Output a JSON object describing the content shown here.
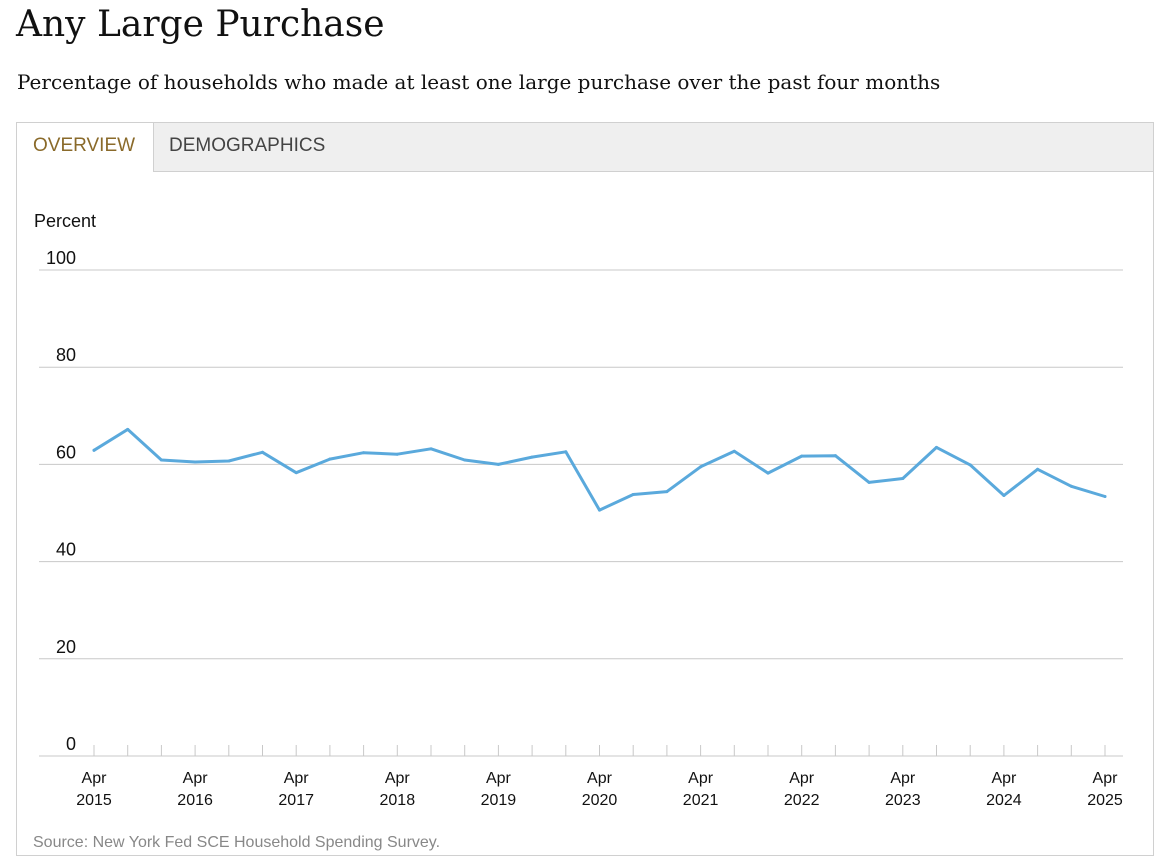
{
  "header": {
    "title": "Any Large Purchase",
    "subtitle": "Percentage of households who made at least one large purchase over the past four months"
  },
  "tabs": [
    {
      "label": "OVERVIEW",
      "active": true
    },
    {
      "label": "DEMOGRAPHICS",
      "active": false
    }
  ],
  "colors": {
    "line": "#5aa9dc",
    "active_tab_text": "#8a6a2a",
    "gridline": "#c8c8c8"
  },
  "chart_data": {
    "type": "line",
    "ylabel": "Percent",
    "ylim": [
      0,
      100
    ],
    "yticks": [
      0,
      20,
      40,
      60,
      80,
      100
    ],
    "x_tick_labels": [
      [
        "Apr",
        "2015"
      ],
      [
        "Apr",
        "2016"
      ],
      [
        "Apr",
        "2017"
      ],
      [
        "Apr",
        "2018"
      ],
      [
        "Apr",
        "2019"
      ],
      [
        "Apr",
        "2020"
      ],
      [
        "Apr",
        "2021"
      ],
      [
        "Apr",
        "2022"
      ],
      [
        "Apr",
        "2023"
      ],
      [
        "Apr",
        "2024"
      ],
      [
        "Apr",
        "2025"
      ]
    ],
    "x": [
      "Apr 2015",
      "Aug 2015",
      "Dec 2015",
      "Apr 2016",
      "Aug 2016",
      "Dec 2016",
      "Apr 2017",
      "Aug 2017",
      "Dec 2017",
      "Apr 2018",
      "Aug 2018",
      "Dec 2018",
      "Apr 2019",
      "Aug 2019",
      "Dec 2019",
      "Apr 2020",
      "Aug 2020",
      "Dec 2020",
      "Apr 2021",
      "Aug 2021",
      "Dec 2021",
      "Apr 2022",
      "Aug 2022",
      "Dec 2022",
      "Apr 2023",
      "Aug 2023",
      "Dec 2023",
      "Apr 2024",
      "Aug 2024",
      "Dec 2024",
      "Apr 2025"
    ],
    "series": [
      {
        "values": [
          62.9,
          67.2,
          60.9,
          60.5,
          60.7,
          62.5,
          58.3,
          61.1,
          62.4,
          62.1,
          63.2,
          60.9,
          60.0,
          61.5,
          62.6,
          50.6,
          53.8,
          54.4,
          59.5,
          62.7,
          58.2,
          61.7,
          61.8,
          56.3,
          57.1,
          63.5,
          59.9,
          53.6,
          59.0,
          55.5,
          53.4
        ]
      }
    ],
    "grid": true,
    "source": "Source: New York Fed SCE Household Spending Survey."
  }
}
